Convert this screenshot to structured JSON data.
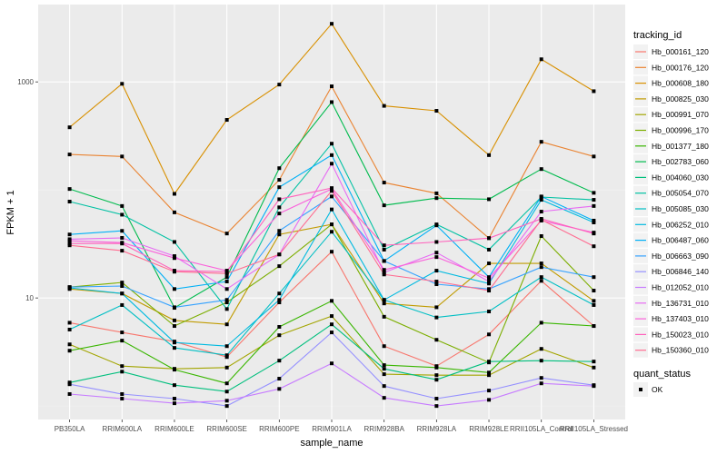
{
  "chart_data": {
    "type": "line",
    "xlabel": "sample_name",
    "ylabel": "FPKM + 1",
    "yscale": "log10",
    "ylim": [
      0.75,
      5200
    ],
    "yticks": [
      10,
      1000
    ],
    "ytick_labels": [
      "10",
      "1000"
    ],
    "y_minor_gridlines": [
      1,
      100
    ],
    "grid": true,
    "categories": [
      "PB350LA",
      "RRIM600LA",
      "RRIM600LE",
      "RRIM600SE",
      "RRIM600PE",
      "RRIM901LA",
      "RRIM928BA",
      "RRIM928LA",
      "RRIM928LE",
      "RRII105LA_Control",
      "RRII105LA_Stressed"
    ],
    "legend": {
      "title": "tracking_id",
      "placement": "right"
    },
    "shape_legend": {
      "title": "quant_status",
      "entries": [
        "OK"
      ]
    },
    "point_color": "#000000",
    "series": [
      {
        "name": "Hb_000161_120",
        "color": "#F8766D",
        "values": [
          5.9,
          4.8,
          3.95,
          2.84,
          9.1,
          26.8,
          3.58,
          2.34,
          4.6,
          14.4,
          5.5
        ]
      },
      {
        "name": "Hb_000176_120",
        "color": "#EA8331",
        "values": [
          213,
          204,
          62,
          39.5,
          124,
          910,
          117,
          93,
          35.8,
          279,
          204
        ]
      },
      {
        "name": "Hb_000608_180",
        "color": "#D89000",
        "values": [
          380,
          960,
          92,
          445,
          945,
          3450,
          600,
          540,
          210,
          1620,
          820
        ]
      },
      {
        "name": "Hb_000825_030",
        "color": "#C09B00",
        "values": [
          12.1,
          11,
          6.2,
          5.7,
          38.7,
          48,
          8.9,
          8.2,
          20.9,
          20.9,
          9.4
        ]
      },
      {
        "name": "Hb_000991_070",
        "color": "#A3A500",
        "values": [
          3.72,
          2.34,
          2.21,
          2.27,
          4.52,
          6.8,
          1.97,
          1.93,
          1.93,
          3.38,
          2.27
        ]
      },
      {
        "name": "Hb_000996_170",
        "color": "#7CAE00",
        "values": [
          12.6,
          13.9,
          5.5,
          9.1,
          19.7,
          48,
          6.7,
          4.1,
          2.53,
          37.4,
          11.7
        ]
      },
      {
        "name": "Hb_001377_180",
        "color": "#39B600",
        "values": [
          3.25,
          4.03,
          2.17,
          1.62,
          5.4,
          9.4,
          2.39,
          2.27,
          2.04,
          5.9,
          5.5
        ]
      },
      {
        "name": "Hb_002783_060",
        "color": "#00BB4E",
        "values": [
          102,
          71,
          8.1,
          15.6,
          159,
          650,
          72,
          84,
          82,
          156,
          94
        ]
      },
      {
        "name": "Hb_004060_030",
        "color": "#00BF7D",
        "values": [
          1.65,
          2.08,
          1.56,
          1.36,
          2.63,
          5.7,
          2.21,
          1.75,
          2.58,
          2.63,
          2.58
        ]
      },
      {
        "name": "Hb_005054_070",
        "color": "#00C1A3",
        "values": [
          78,
          59,
          33,
          7.9,
          69,
          268,
          28,
          48,
          28,
          86,
          81
        ]
      },
      {
        "name": "Hb_005085_030",
        "color": "#00BFC4",
        "values": [
          5.1,
          8.6,
          3.45,
          2.95,
          11,
          41,
          9.6,
          6.6,
          7.5,
          15.6,
          8.6
        ]
      },
      {
        "name": "Hb_006252_010",
        "color": "#00BAE0",
        "values": [
          12.4,
          11,
          3.87,
          3.58,
          9.6,
          66,
          9.6,
          17.9,
          13.6,
          81,
          50
        ]
      },
      {
        "name": "Hb_006487_060",
        "color": "#00B0F6",
        "values": [
          38.7,
          41.8,
          12.1,
          14.2,
          106,
          210,
          22,
          47,
          15.6,
          87,
          52
        ]
      },
      {
        "name": "Hb_006663_090",
        "color": "#35A2FF",
        "values": [
          12.6,
          12.9,
          8.2,
          9.6,
          41.8,
          87,
          22,
          13.4,
          12.1,
          19.3,
          15.6
        ]
      },
      {
        "name": "Hb_006846_140",
        "color": "#9590FF",
        "values": [
          1.59,
          1.29,
          1.17,
          1.0,
          1.79,
          4.8,
          1.53,
          1.17,
          1.39,
          1.82,
          1.56
        ]
      },
      {
        "name": "Hb_012052_010",
        "color": "#C77CFF",
        "values": [
          1.29,
          1.17,
          1.06,
          1.12,
          1.44,
          2.48,
          1.19,
          1.0,
          1.14,
          1.62,
          1.53
        ]
      },
      {
        "name": "Hb_136731_010",
        "color": "#E76BF3",
        "values": [
          35,
          36,
          24.4,
          12.1,
          25.3,
          175,
          17.2,
          26.3,
          14.2,
          63,
          71
        ]
      },
      {
        "name": "Hb_137403_010",
        "color": "#FA62DB",
        "values": [
          33.8,
          32.5,
          23.4,
          17.9,
          60.5,
          102,
          18.2,
          23.9,
          15.3,
          52,
          40.3
        ]
      },
      {
        "name": "Hb_150023_010",
        "color": "#FF62BC",
        "values": [
          31.9,
          31.9,
          17.9,
          17.5,
          82,
          104,
          30.7,
          33,
          35.8,
          54,
          39.5
        ]
      },
      {
        "name": "Hb_150360_010",
        "color": "#FF6C91",
        "values": [
          30.7,
          27.4,
          17.5,
          16.8,
          25.3,
          98,
          16.5,
          14.2,
          11.7,
          53,
          30.1
        ]
      }
    ]
  }
}
